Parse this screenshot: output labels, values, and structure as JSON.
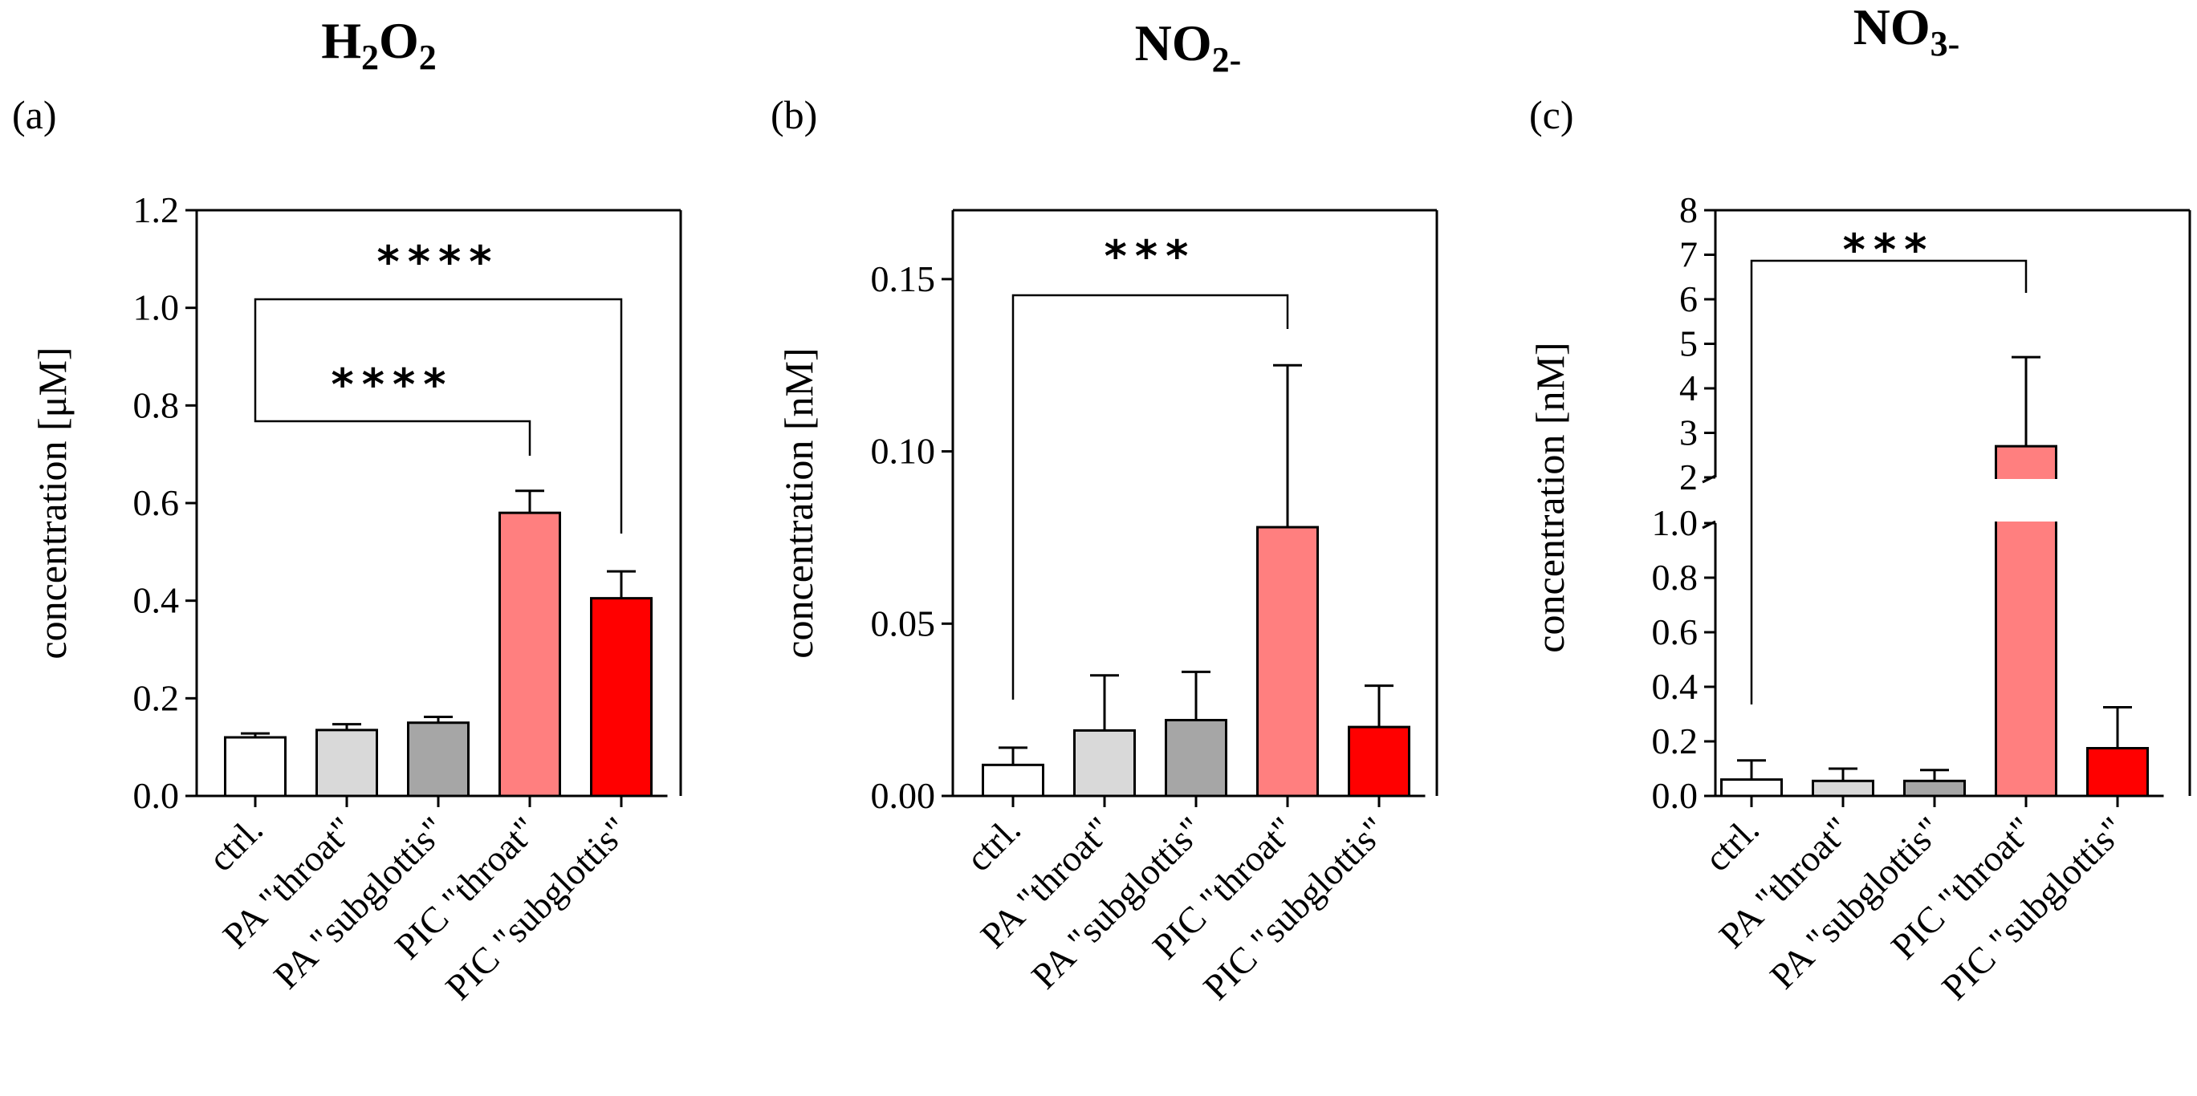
{
  "colors": {
    "ctrl": "#ffffff",
    "pa_throat": "#d9d9d9",
    "pa_subglottis": "#a6a6a6",
    "pic_throat": "#ff7f7f",
    "pic_subglottis": "#ff0000"
  },
  "chart_data": [
    {
      "type": "bar",
      "panel": "(a)",
      "title": "H2O2",
      "title_parts": {
        "base1": "H",
        "sub1": "2",
        "base2": "O",
        "sub2": "2"
      },
      "ylabel": "concentration [μM]",
      "ylim": [
        0,
        1.2
      ],
      "yticks": [
        "0.0",
        "0.2",
        "0.4",
        "0.6",
        "0.8",
        "1.0",
        "1.2"
      ],
      "categories": [
        "ctrl.",
        "PA \"throat\"",
        "PA \"subglottis\"",
        "PIC \"throat\"",
        "PIC \"subglottis\""
      ],
      "values": [
        0.12,
        0.135,
        0.15,
        0.58,
        0.405
      ],
      "errors": [
        0.008,
        0.012,
        0.012,
        0.045,
        0.055
      ],
      "significance": [
        {
          "from": 0,
          "to": 4,
          "label": "****"
        },
        {
          "from": 0,
          "to": 3,
          "label": "****"
        }
      ]
    },
    {
      "type": "bar",
      "panel": "(b)",
      "title": "NO2-",
      "title_parts": {
        "base1": "NO",
        "sub1": "2-"
      },
      "ylabel": "concentration [nM]",
      "ylim": [
        0,
        0.17
      ],
      "yticks": [
        "0.00",
        "0.05",
        "0.10",
        "0.15"
      ],
      "categories": [
        "ctrl.",
        "PA \"throat\"",
        "PA \"subglottis\"",
        "PIC \"throat\"",
        "PIC \"subglottis\""
      ],
      "values": [
        0.009,
        0.019,
        0.022,
        0.078,
        0.02
      ],
      "errors": [
        0.005,
        0.016,
        0.014,
        0.047,
        0.012
      ],
      "significance": [
        {
          "from": 0,
          "to": 3,
          "label": "***"
        }
      ]
    },
    {
      "type": "bar",
      "panel": "(c)",
      "title": "NO3-",
      "title_parts": {
        "base1": "NO",
        "sub1": "3-"
      },
      "ylabel": "concentration [nM]",
      "axis_break": {
        "lower_range": [
          0,
          1.0
        ],
        "upper_range": [
          2,
          8
        ]
      },
      "yticks_lower": [
        "0.0",
        "0.2",
        "0.4",
        "0.6",
        "0.8",
        "1.0"
      ],
      "yticks_upper": [
        "2",
        "3",
        "4",
        "5",
        "6",
        "7",
        "8"
      ],
      "categories": [
        "ctrl.",
        "PA \"throat\"",
        "PA \"subglottis\"",
        "PIC \"throat\"",
        "PIC \"subglottis\""
      ],
      "values": [
        0.06,
        0.055,
        0.055,
        2.7,
        0.175
      ],
      "errors": [
        0.07,
        0.045,
        0.04,
        2.0,
        0.15
      ],
      "significance": [
        {
          "from": 0,
          "to": 3,
          "label": "***"
        }
      ]
    }
  ]
}
